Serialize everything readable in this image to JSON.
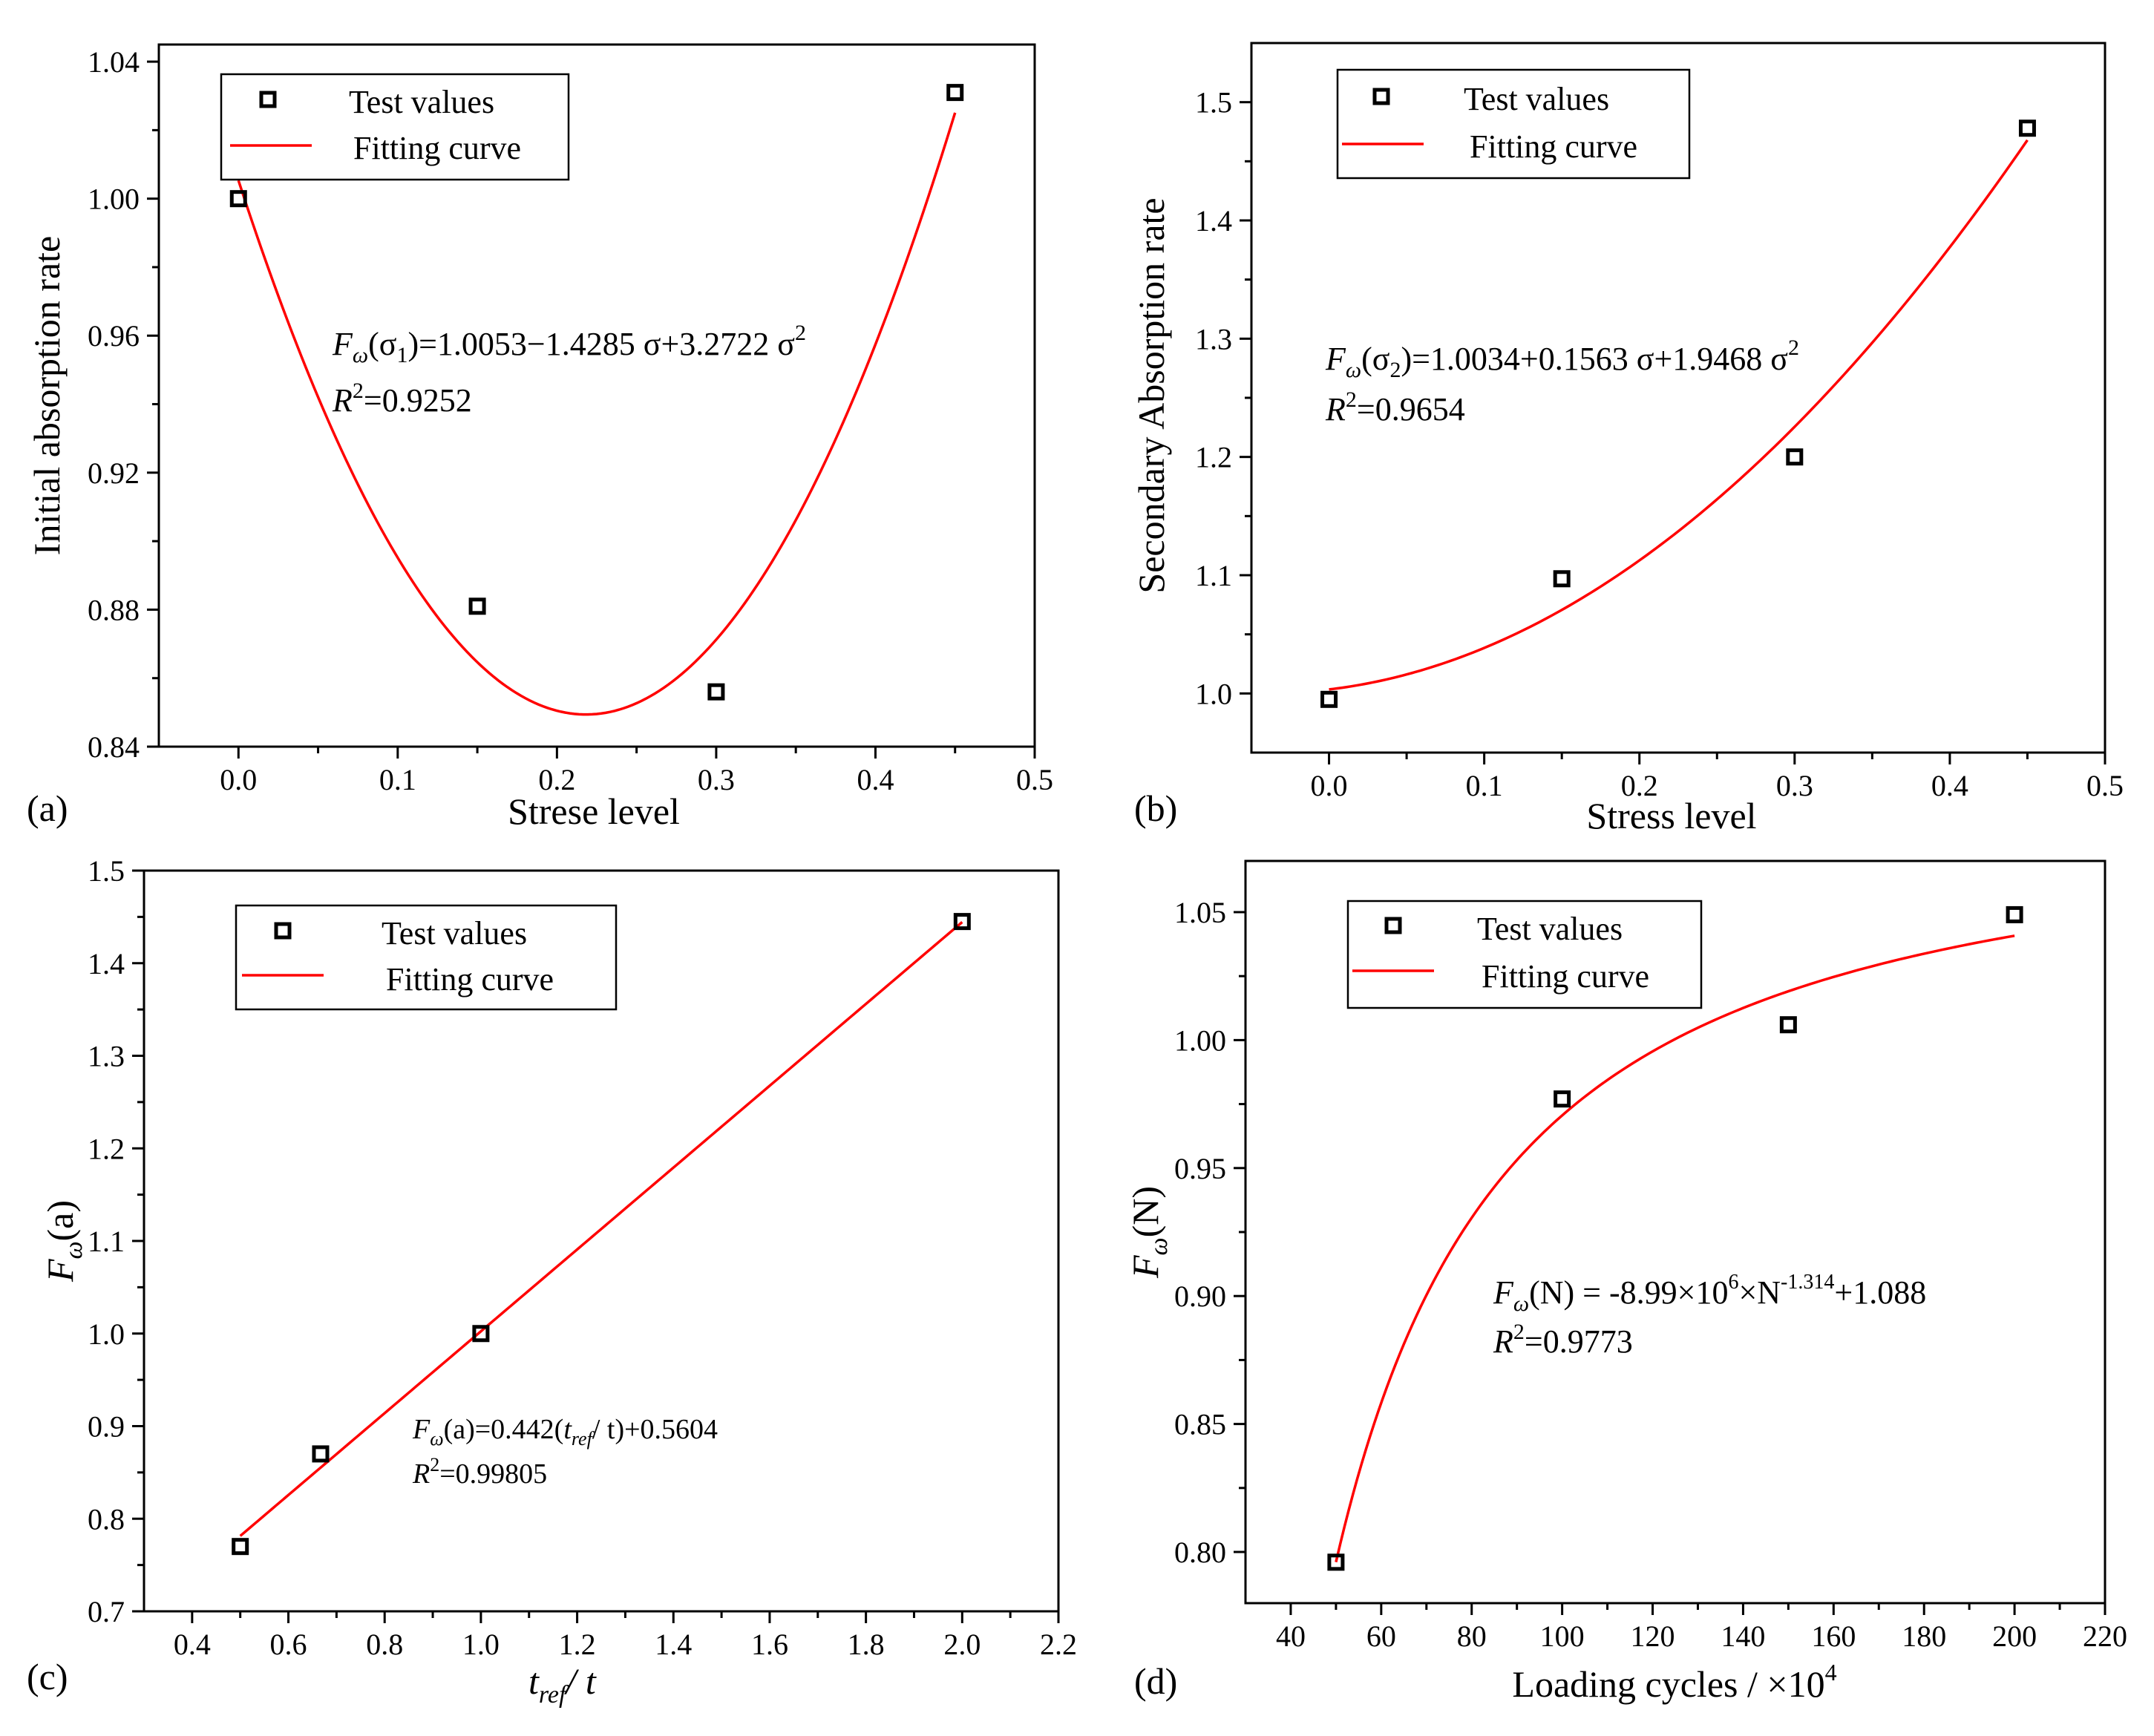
{
  "colors": {
    "fit": "#ff0000",
    "points": "#000000",
    "axes": "#000000"
  },
  "chart_data": [
    {
      "id": "a",
      "type": "scatter",
      "panel_label": "(a)",
      "xlabel": "Strese level",
      "ylabel": "Initial absorption rate",
      "xlim": [
        -0.05,
        0.5
      ],
      "ylim": [
        0.84,
        1.045
      ],
      "xticks": [
        0.0,
        0.1,
        0.2,
        0.3,
        0.4,
        0.5
      ],
      "xtick_labels": [
        "0.0",
        "0.1",
        "0.2",
        "0.3",
        "0.4",
        "0.5"
      ],
      "yticks": [
        0.84,
        0.88,
        0.92,
        0.96,
        1.0,
        1.04
      ],
      "ytick_labels": [
        "0.84",
        "0.88",
        "0.92",
        "0.96",
        "1.00",
        "1.04"
      ],
      "legend": {
        "points": "Test values",
        "fit": "Fitting curve",
        "position": "top-left"
      },
      "x": [
        0.0,
        0.15,
        0.3,
        0.45
      ],
      "y": [
        1.0,
        0.881,
        0.856,
        1.031
      ],
      "fit": {
        "kind": "poly2",
        "coef": [
          1.0053,
          -1.4285,
          3.2722
        ],
        "range": [
          0.0,
          0.45
        ]
      },
      "equation": {
        "lhs": "F",
        "lhs_sub": "ω",
        "arg": "(σ",
        "arg_sub": "1",
        "rhs": ")=1.0053−1.4285 σ+3.2722 σ",
        "rhs_sup": "2",
        "r2_label": "R",
        "r2_sup": "2",
        "r2_value": "=0.9252"
      }
    },
    {
      "id": "b",
      "type": "scatter",
      "panel_label": "(b)",
      "xlabel": "Stress level",
      "ylabel": "Secondary Absorption rate",
      "xlim": [
        -0.05,
        0.5
      ],
      "ylim": [
        0.95,
        1.55
      ],
      "xticks": [
        0.0,
        0.1,
        0.2,
        0.3,
        0.4,
        0.5
      ],
      "xtick_labels": [
        "0.0",
        "0.1",
        "0.2",
        "0.3",
        "0.4",
        "0.5"
      ],
      "yticks": [
        1.0,
        1.1,
        1.2,
        1.3,
        1.4,
        1.5
      ],
      "ytick_labels": [
        "1.0",
        "1.1",
        "1.2",
        "1.3",
        "1.4",
        "1.5"
      ],
      "legend": {
        "points": "Test values",
        "fit": "Fitting curve",
        "position": "top-left"
      },
      "x": [
        0.0,
        0.15,
        0.3,
        0.45
      ],
      "y": [
        0.995,
        1.097,
        1.2,
        1.478
      ],
      "fit": {
        "kind": "poly2",
        "coef": [
          1.0034,
          0.1563,
          1.9468
        ],
        "range": [
          0.0,
          0.45
        ]
      },
      "equation": {
        "lhs": "F",
        "lhs_sub": "ω",
        "arg": "(σ",
        "arg_sub": "2",
        "rhs": ")=1.0034+0.1563 σ+1.9468 σ",
        "rhs_sup": "2",
        "r2_label": "R",
        "r2_sup": "2",
        "r2_value": "=0.9654"
      }
    },
    {
      "id": "c",
      "type": "scatter",
      "panel_label": "(c)",
      "xlabel": "t",
      "xlabel_sub": "ref",
      "xlabel_rest": "/ t",
      "ylabel": "F",
      "ylabel_sub": "ω",
      "ylabel_rest": "(a)",
      "xlim": [
        0.3,
        2.2
      ],
      "ylim": [
        0.7,
        1.5
      ],
      "xticks": [
        0.4,
        0.6,
        0.8,
        1.0,
        1.2,
        1.4,
        1.6,
        1.8,
        2.0,
        2.2
      ],
      "xtick_labels": [
        "0.4",
        "0.6",
        "0.8",
        "1.0",
        "1.2",
        "1.4",
        "1.6",
        "1.8",
        "2.0",
        "2.2"
      ],
      "yticks": [
        0.7,
        0.8,
        0.9,
        1.0,
        1.1,
        1.2,
        1.3,
        1.4,
        1.5
      ],
      "ytick_labels": [
        "0.7",
        "0.8",
        "0.9",
        "1.0",
        "1.1",
        "1.2",
        "1.3",
        "1.4",
        "1.5"
      ],
      "legend": {
        "points": "Test values",
        "fit": "Fitting curve",
        "position": "top-left"
      },
      "x": [
        0.5,
        0.667,
        1.0,
        2.0
      ],
      "y": [
        0.77,
        0.87,
        1.0,
        1.445
      ],
      "fit": {
        "kind": "linear",
        "coef": [
          0.5604,
          0.442
        ],
        "range": [
          0.5,
          2.0
        ]
      },
      "equation": {
        "lhs": "F",
        "lhs_sub": "ω",
        "rhs1": "(a)=0.442(",
        "t": "t",
        "t_sub": "ref",
        "rhs2": "/ t)+0.5604",
        "r2_label": "R",
        "r2_sup": "2",
        "r2_value": "=0.99805"
      }
    },
    {
      "id": "d",
      "type": "scatter",
      "panel_label": "(d)",
      "xlabel": "Loading cycles / ×10",
      "xlabel_sup": "4",
      "ylabel": "F",
      "ylabel_sub": "ω",
      "ylabel_rest": "(N)",
      "xlim": [
        30,
        220
      ],
      "ylim": [
        0.78,
        1.07
      ],
      "xticks": [
        40,
        60,
        80,
        100,
        120,
        140,
        160,
        180,
        200,
        220
      ],
      "xtick_labels": [
        "40",
        "60",
        "80",
        "100",
        "120",
        "140",
        "160",
        "180",
        "200",
        "220"
      ],
      "yticks": [
        0.8,
        0.85,
        0.9,
        0.95,
        1.0,
        1.05
      ],
      "ytick_labels": [
        "0.80",
        "0.85",
        "0.90",
        "0.95",
        "1.00",
        "1.05"
      ],
      "legend": {
        "points": "Test values",
        "fit": "Fitting curve",
        "position": "top-left"
      },
      "x": [
        50,
        100,
        150,
        200
      ],
      "y": [
        0.796,
        0.977,
        1.006,
        1.049
      ],
      "fit": {
        "kind": "power",
        "a": -8.99,
        "b": -1.314,
        "c": 1.088,
        "range": [
          50,
          200
        ]
      },
      "equation": {
        "lhs": "F",
        "lhs_sub": "ω",
        "rhs1": "(N) = -8.99×10",
        "sup1": "6",
        "rhs2": "×N",
        "sup2": "-1.314",
        "rhs3": "+1.088",
        "r2_label": "R",
        "r2_sup": "2",
        "r2_value": "=0.9773"
      }
    }
  ]
}
